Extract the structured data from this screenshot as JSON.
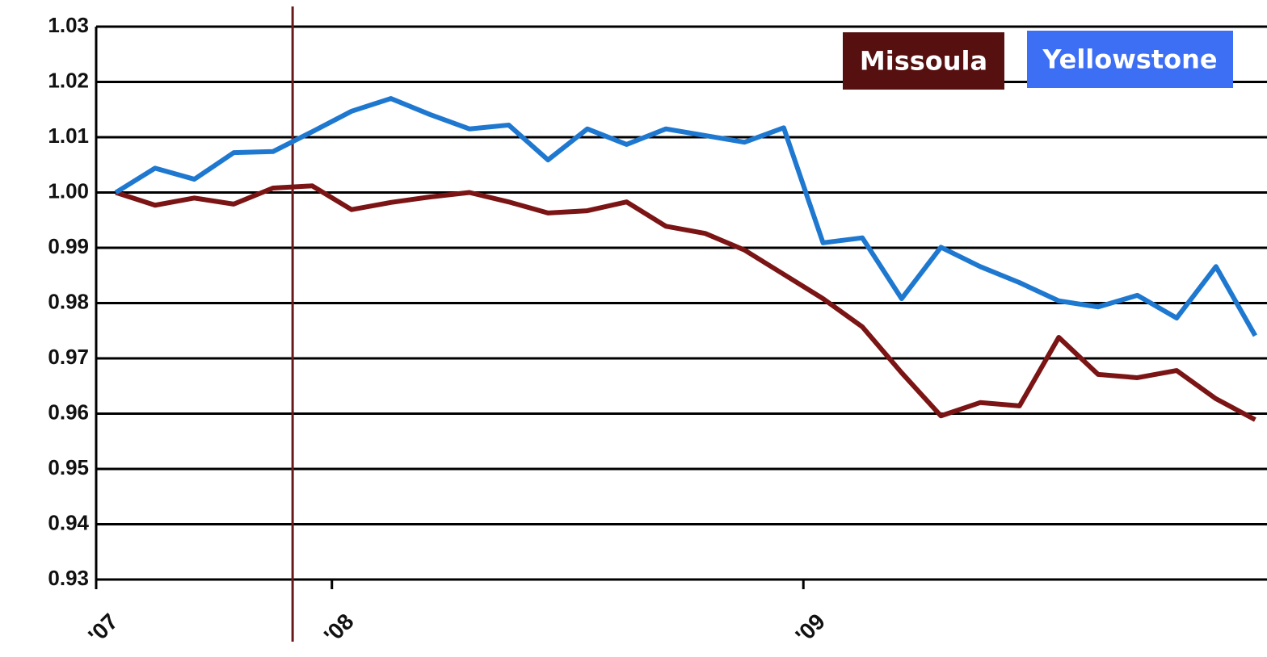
{
  "chart_data": {
    "type": "line",
    "x": [
      0.5,
      1.5,
      2.5,
      3.5,
      4.5,
      5.5,
      6.5,
      7.5,
      8.5,
      9.5,
      10.5,
      11.5,
      12.5,
      13.5,
      14.5,
      15.5,
      16.5,
      17.5,
      18.5,
      19.5,
      20.5,
      21.5,
      22.5,
      23.5,
      24.5,
      25.5,
      26.5,
      27.5,
      28.5,
      29.5
    ],
    "series": [
      {
        "name": "Missoula",
        "color": "#7b1414",
        "legend_color": "#561010",
        "values": [
          1.0,
          0.9977,
          0.999,
          0.9979,
          1.0008,
          1.0012,
          0.9969,
          0.9982,
          0.9992,
          1.0,
          0.9983,
          0.9963,
          0.9967,
          0.9983,
          0.9939,
          0.9926,
          0.9896,
          0.9852,
          0.9808,
          0.9757,
          0.9674,
          0.9596,
          0.962,
          0.9614,
          0.9738,
          0.9671,
          0.9665,
          0.9678,
          0.9627,
          0.9589
        ]
      },
      {
        "name": "Yellowstone",
        "color": "#1f78d0",
        "legend_color": "#3d6ff5",
        "values": [
          1.0,
          1.0044,
          1.0024,
          1.0072,
          1.0074,
          1.011,
          1.0147,
          1.017,
          1.0141,
          1.0115,
          1.0122,
          1.0059,
          1.0115,
          1.0087,
          1.0115,
          1.0103,
          1.0091,
          1.0117,
          0.9909,
          0.9918,
          0.9808,
          0.9901,
          0.9866,
          0.9837,
          0.9804,
          0.9793,
          0.9814,
          0.9773,
          0.9866,
          0.9741
        ]
      }
    ],
    "xlim": [
      0,
      29.8
    ],
    "xticks": [
      {
        "value": 0,
        "label": "'07"
      },
      {
        "value": 6,
        "label": "'08"
      },
      {
        "value": 18,
        "label": "'09"
      }
    ],
    "ylim": [
      0.93,
      1.03
    ],
    "yticks": [
      0.93,
      0.94,
      0.95,
      0.96,
      0.97,
      0.98,
      0.99,
      {
        "value": 1,
        "label": "1.00"
      },
      1.01,
      1.02,
      1.03
    ],
    "vline": 5,
    "vline_color": "#6b1a1a",
    "grid": true
  }
}
